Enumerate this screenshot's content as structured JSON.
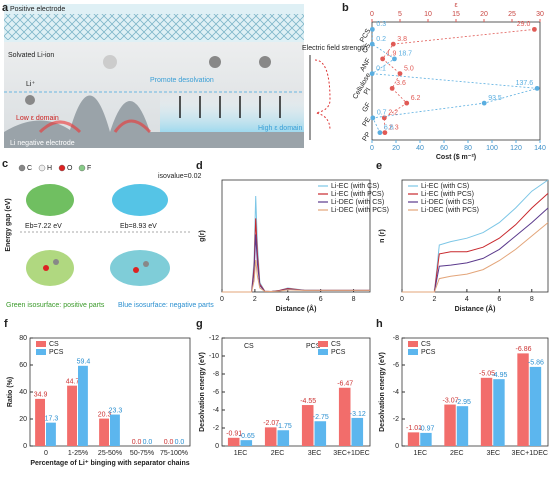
{
  "illustration": {
    "panel": "a",
    "positive": "Positive electrode",
    "solvated": "Solvated Li-ion",
    "li": "Li⁺",
    "low": "Low ε domain",
    "promote": "Promote desolvation",
    "high": "High ε domain",
    "field": "Electric field strength",
    "negative": "Li negative electrode"
  },
  "molecules": {
    "panel": "c",
    "atoms": [
      "C",
      "H",
      "O",
      "F"
    ],
    "isovalue": "isovalue=0.02",
    "gap_axis": "Energy gap (eV)",
    "gap_left": "Eb=7.22 eV",
    "gap_right": "Eb=8.93 eV",
    "green_note": "Green isosurface: positive parts",
    "blue_note": "Blue isosurface: negative parts"
  },
  "chart_data": [
    {
      "panel": "b",
      "type": "dot",
      "categories": [
        "PCS",
        "CS",
        "ANF",
        "Cellulose",
        "PI",
        "GF",
        "PE",
        "PP"
      ],
      "x2label": "ε",
      "xlabel": "Cost ($ m⁻²)",
      "x2lim": [
        0,
        30
      ],
      "x2ticks": [
        0,
        5,
        10,
        15,
        20,
        25,
        30
      ],
      "xlim": [
        0,
        140
      ],
      "xticks": [
        0,
        20,
        40,
        60,
        80,
        100,
        120,
        140
      ],
      "series": [
        {
          "name": "ε",
          "axis": "x2",
          "color": "#e05a55",
          "values": [
            29.0,
            3.8,
            1.9,
            5.0,
            3.6,
            6.2,
            2.2,
            2.3
          ],
          "value_labels": [
            "29.0",
            "3.8",
            "1.9",
            "5.0",
            "3.6",
            "6.2",
            "2.2",
            "2.3"
          ]
        },
        {
          "name": "Cost",
          "axis": "x",
          "color": "#5aaee0",
          "values": [
            0.3,
            0.2,
            18.7,
            0.1,
            137.6,
            93.5,
            0.7,
            6.6
          ],
          "value_labels": [
            "0.3",
            "0.2",
            "18.7",
            "0.1",
            "137.6",
            "93.5",
            "0.7",
            "6.6"
          ]
        }
      ]
    },
    {
      "panel": "d",
      "type": "line",
      "xlabel": "Distance (Å)",
      "ylabel": "g(r)",
      "xlim": [
        0,
        9
      ],
      "xticks": [
        0,
        2,
        4,
        6,
        8
      ],
      "ylim": [
        0,
        70
      ],
      "legend": "upper right",
      "x": [
        0,
        1.8,
        1.95,
        2.05,
        2.15,
        2.3,
        2.6,
        3,
        3.5,
        4,
        4.5,
        5,
        6,
        7,
        8,
        9
      ],
      "series": [
        {
          "name": "Li-EC (with CS)",
          "color": "#7cc6e6",
          "values": [
            0,
            0,
            20,
            60,
            30,
            6,
            0.5,
            0.3,
            1,
            2.5,
            1.8,
            1.2,
            1,
            1,
            1,
            1
          ]
        },
        {
          "name": "Li-EC (with PCS)",
          "color": "#c8282d",
          "values": [
            0,
            0,
            16,
            46,
            24,
            5,
            0.5,
            0.3,
            1,
            2.2,
            1.6,
            1.1,
            1,
            1,
            1,
            1
          ]
        },
        {
          "name": "Li-DEC (with CS)",
          "color": "#5b3a8c",
          "values": [
            0,
            0,
            12,
            36,
            18,
            4,
            0.4,
            0.3,
            0.8,
            1.8,
            1.4,
            1.1,
            1,
            1,
            1,
            1
          ]
        },
        {
          "name": "Li-DEC (with PCS)",
          "color": "#e3a57a",
          "values": [
            0,
            0,
            7,
            20,
            10,
            2.5,
            0.4,
            0.3,
            0.6,
            1.4,
            1.2,
            1,
            1,
            1,
            1,
            1
          ]
        }
      ]
    },
    {
      "panel": "e",
      "type": "line",
      "xlabel": "Distance (Å)",
      "ylabel": "n (r)",
      "xlim": [
        0,
        9
      ],
      "xticks": [
        0,
        2,
        4,
        6,
        8
      ],
      "ylim": [
        0,
        10
      ],
      "legend": "upper left",
      "x": [
        0,
        2,
        2.3,
        3,
        4,
        5,
        6,
        7,
        8,
        9
      ],
      "series": [
        {
          "name": "Li-EC (with CS)",
          "color": "#7cc6e6",
          "values": [
            0,
            0,
            4.2,
            4.5,
            4.8,
            5.3,
            6.2,
            7.5,
            9,
            10
          ]
        },
        {
          "name": "Li-EC (with PCS)",
          "color": "#c8282d",
          "values": [
            0,
            0,
            3.4,
            3.6,
            3.6,
            4,
            4.8,
            6,
            7.5,
            8.8
          ]
        },
        {
          "name": "Li-DEC (with CS)",
          "color": "#5b3a8c",
          "values": [
            0,
            0,
            2.3,
            2.4,
            2.6,
            3,
            3.8,
            5,
            6.2,
            7.5
          ]
        },
        {
          "name": "Li-DEC (with PCS)",
          "color": "#e3a57a",
          "values": [
            0,
            0,
            1.2,
            1.4,
            1.6,
            2,
            2.8,
            3.8,
            5,
            6.2
          ]
        }
      ]
    },
    {
      "panel": "f",
      "type": "bar",
      "xlabel": "Percentage of Li⁺ binging with separator chains",
      "ylabel": "Ratio (%)",
      "ylim": [
        0,
        80
      ],
      "yticks": [
        0,
        20,
        40,
        60,
        80
      ],
      "legend": "upper left",
      "categories": [
        "0",
        "1-25%",
        "25-50%",
        "50-75%",
        "75-100%"
      ],
      "series": [
        {
          "name": "CS",
          "color": "#f26d6b",
          "values": [
            34.9,
            44.7,
            20.3,
            0.0,
            0.0
          ],
          "value_labels": [
            "34.9",
            "44.7",
            "20.3",
            "0.0",
            "0.0"
          ]
        },
        {
          "name": "PCS",
          "color": "#5cb6ee",
          "values": [
            17.3,
            59.4,
            23.3,
            0.0,
            0.0
          ],
          "value_labels": [
            "17.3",
            "59.4",
            "23.3",
            "0.0",
            "0.0"
          ]
        }
      ]
    },
    {
      "panel": "g",
      "type": "bar",
      "ylabel": "Desolvation energy (eV)",
      "ylim": [
        0,
        -12
      ],
      "yticks": [
        0,
        -2,
        -4,
        -6,
        -8,
        -10,
        -12
      ],
      "legend": "upper right",
      "annotations": [
        "CS",
        "PCS"
      ],
      "categories": [
        "1EC",
        "2EC",
        "3EC",
        "3EC+1DEC"
      ],
      "series": [
        {
          "name": "CS",
          "color": "#f26d6b",
          "values": [
            -0.91,
            -2.07,
            -4.55,
            -6.47
          ]
        },
        {
          "name": "PCS",
          "color": "#5cb6ee",
          "values": [
            -0.65,
            -1.75,
            -2.75,
            -3.12
          ]
        }
      ]
    },
    {
      "panel": "h",
      "type": "bar",
      "ylabel": "Desolvation energy (eV)",
      "ylim": [
        0,
        -8
      ],
      "yticks": [
        0,
        -2,
        -4,
        -6,
        -8
      ],
      "legend": "upper left",
      "categories": [
        "1EC",
        "2EC",
        "3EC",
        "3EC+1DEC"
      ],
      "series": [
        {
          "name": "CS",
          "color": "#f26d6b",
          "values": [
            -1.01,
            -3.07,
            -5.05,
            -6.86
          ]
        },
        {
          "name": "PCS",
          "color": "#5cb6ee",
          "values": [
            -0.97,
            -2.95,
            -4.95,
            -5.86
          ]
        }
      ]
    }
  ]
}
